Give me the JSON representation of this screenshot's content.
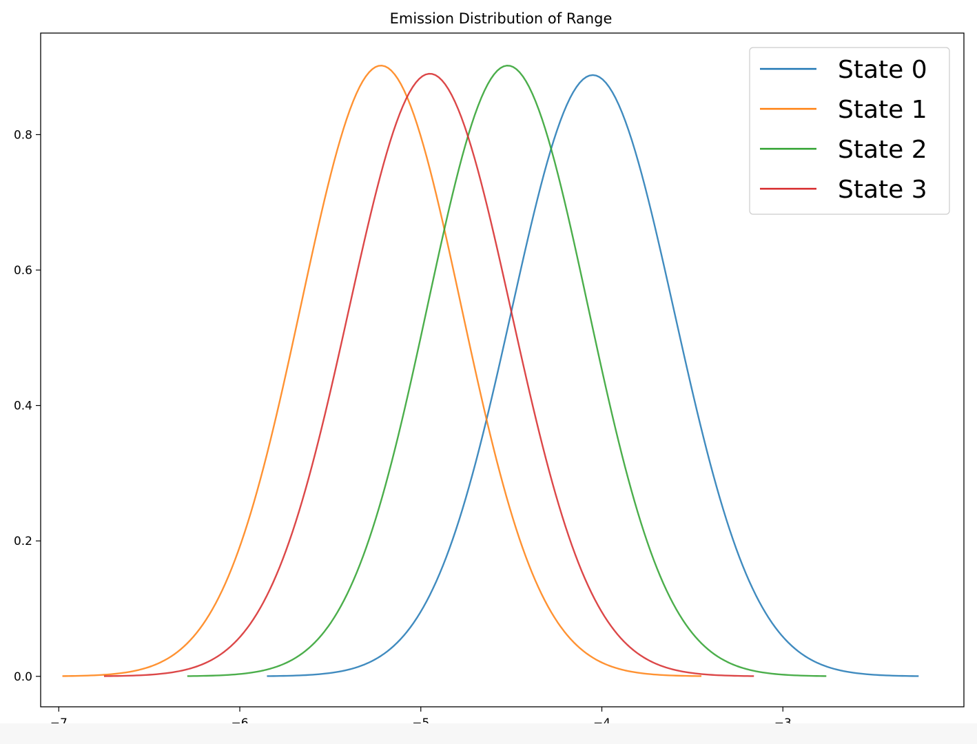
{
  "chart_data": {
    "type": "line",
    "title": "Emission Distribution of Range",
    "xlabel": "",
    "ylabel": "",
    "xlim": [
      -7.1,
      -2.0
    ],
    "ylim": [
      -0.045,
      0.95
    ],
    "x_ticks": [
      -7,
      -6,
      -5,
      -4,
      -3
    ],
    "x_tick_labels": [
      "−7",
      "−6",
      "−5",
      "−4",
      "−3"
    ],
    "y_ticks": [
      0.0,
      0.2,
      0.4,
      0.6,
      0.8
    ],
    "y_tick_labels": [
      "0.0",
      "0.2",
      "0.4",
      "0.6",
      "0.8"
    ],
    "grid": false,
    "legend_position": "top-right",
    "series": [
      {
        "name": "State 0",
        "color": "#1f77b4",
        "mean": -4.05,
        "std": 0.45,
        "peak": 0.888,
        "x_range": [
          -5.85,
          -2.25
        ]
      },
      {
        "name": "State 1",
        "color": "#ff7f0e",
        "mean": -5.22,
        "std": 0.443,
        "peak": 0.902,
        "x_range": [
          -6.98,
          -3.45
        ]
      },
      {
        "name": "State 2",
        "color": "#2ca02c",
        "mean": -4.52,
        "std": 0.443,
        "peak": 0.902,
        "x_range": [
          -6.29,
          -2.76
        ]
      },
      {
        "name": "State 3",
        "color": "#d62728",
        "mean": -4.95,
        "std": 0.449,
        "peak": 0.89,
        "x_range": [
          -6.75,
          -3.16
        ]
      }
    ]
  }
}
